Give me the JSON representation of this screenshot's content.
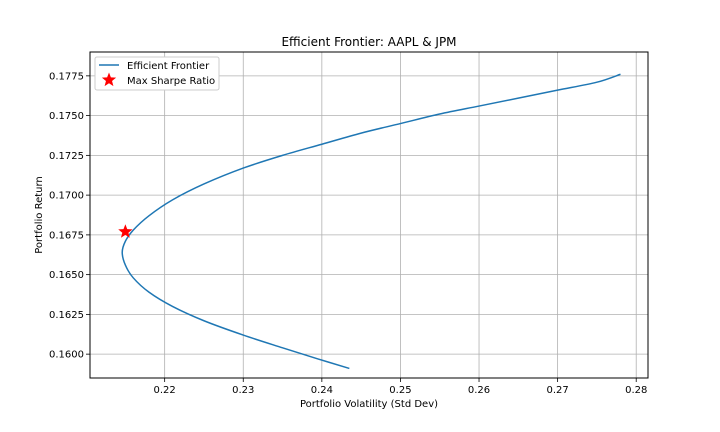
{
  "chart_data": {
    "type": "line",
    "title": "Efficient Frontier: AAPL & JPM",
    "xlabel": "Portfolio Volatility (Std Dev)",
    "ylabel": "Portfolio Return",
    "xlim": [
      0.2105,
      0.2815
    ],
    "ylim": [
      0.1585,
      0.179
    ],
    "xticks": [
      0.22,
      0.23,
      0.24,
      0.25,
      0.26,
      0.27,
      0.28
    ],
    "yticks": [
      0.16,
      0.1625,
      0.165,
      0.1675,
      0.17,
      0.1725,
      0.175,
      0.1775
    ],
    "xtick_labels": [
      "0.22",
      "0.23",
      "0.24",
      "0.25",
      "0.26",
      "0.27",
      "0.28"
    ],
    "ytick_labels": [
      "0.1600",
      "0.1625",
      "0.1650",
      "0.1675",
      "0.1700",
      "0.1725",
      "0.1750",
      "0.1775"
    ],
    "grid": true,
    "legend_position": "upper-left",
    "series": [
      {
        "name": "Efficient Frontier",
        "kind": "line",
        "color": "#1f77b4",
        "x": [
          0.2435,
          0.2395,
          0.235,
          0.23,
          0.225,
          0.221,
          0.218,
          0.216,
          0.215,
          0.2146,
          0.215,
          0.216,
          0.218,
          0.221,
          0.225,
          0.23,
          0.235,
          0.24,
          0.245,
          0.25,
          0.255,
          0.26,
          0.265,
          0.27,
          0.275,
          0.278
        ],
        "y": [
          0.1591,
          0.1597,
          0.1604,
          0.1612,
          0.1621,
          0.163,
          0.1639,
          0.1648,
          0.1656,
          0.1664,
          0.1671,
          0.1678,
          0.1687,
          0.1697,
          0.1707,
          0.1717,
          0.1725,
          0.1732,
          0.1739,
          0.1745,
          0.1751,
          0.1756,
          0.1761,
          0.1766,
          0.1771,
          0.1776
        ]
      },
      {
        "name": "Max Sharpe Ratio",
        "kind": "marker",
        "marker": "star",
        "color": "#ff0000",
        "x": [
          0.215
        ],
        "y": [
          0.1677
        ]
      }
    ]
  }
}
